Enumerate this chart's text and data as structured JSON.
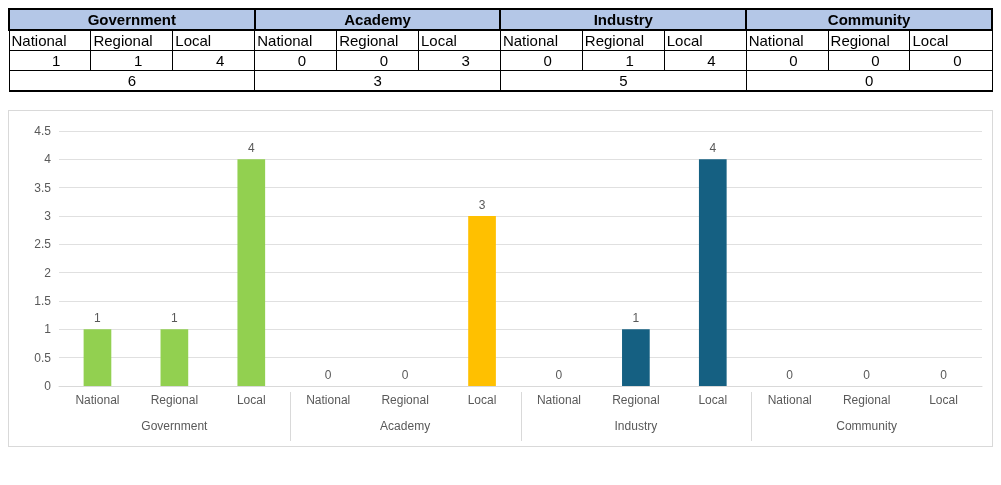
{
  "chart_data": [
    {
      "type": "other",
      "categories": [
        "National",
        "Regional",
        "Local",
        "National",
        "Regional",
        "Local",
        "National",
        "Regional",
        "Local",
        "National",
        "Regional",
        "Local"
      ],
      "values": [
        1,
        1,
        4,
        0,
        0,
        3,
        0,
        1,
        4,
        0,
        0,
        0
      ],
      "annotations": [
        "Government",
        "Academy",
        "Industry",
        "Community",
        "6",
        "3",
        "5",
        "0"
      ],
      "data_labels": true
    },
    {
      "type": "bar",
      "categories": [
        "National",
        "Regional",
        "Local",
        "National",
        "Regional",
        "Local",
        "National",
        "Regional",
        "Local",
        "National",
        "Regional",
        "Local"
      ],
      "values": [
        1,
        1,
        4,
        0,
        0,
        3,
        0,
        1,
        4,
        0,
        0,
        0
      ],
      "colors": [
        "#92d050",
        "#92d050",
        "#92d050",
        "#ffc000",
        "#ffc000",
        "#ffc000",
        "#156082",
        "#156082",
        "#156082",
        null,
        null,
        null
      ],
      "annotations": [
        "Government",
        "Academy",
        "Industry",
        "Community"
      ],
      "data_labels": true,
      "ylim": [
        0,
        4.5
      ],
      "yticks": [
        0,
        0.5,
        1,
        1.5,
        2,
        2.5,
        3,
        3.5,
        4,
        4.5
      ],
      "grid": "y"
    }
  ]
}
